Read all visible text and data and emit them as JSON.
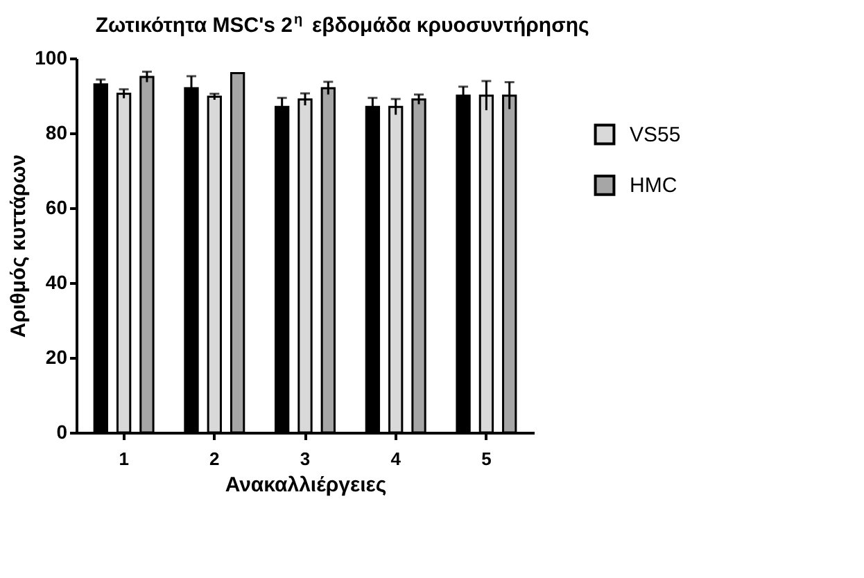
{
  "chart_data": {
    "type": "bar",
    "title": "Ζωτικότητα MSC's 2$^{η}$ εβδομάδα κρυοσυντήρησης",
    "xlabel": "Ανακαλλιέργειες",
    "ylabel": "Αριθμός κυττάρων",
    "categories": [
      "1",
      "2",
      "3",
      "4",
      "5"
    ],
    "series": [
      {
        "color": "#000000",
        "values": [
          93,
          92,
          87,
          87,
          90
        ],
        "errors": [
          1.3,
          3.2,
          2.4,
          2.4,
          2.4
        ]
      },
      {
        "name": "VS55",
        "color": "#d9d9d9",
        "values": [
          90.5,
          89.7,
          89,
          87,
          90
        ],
        "errors": [
          1.2,
          0.8,
          1.6,
          2.1,
          3.9
        ]
      },
      {
        "name": "HMC",
        "color": "#a6a6a6",
        "values": [
          95,
          96,
          92,
          89,
          90
        ],
        "errors": [
          1.4,
          null,
          1.7,
          1.3,
          3.6
        ]
      }
    ],
    "ylim": [
      0,
      100
    ],
    "yticks": [
      0,
      20,
      40,
      60,
      80,
      100
    ],
    "grid": false,
    "legend": "top right"
  }
}
